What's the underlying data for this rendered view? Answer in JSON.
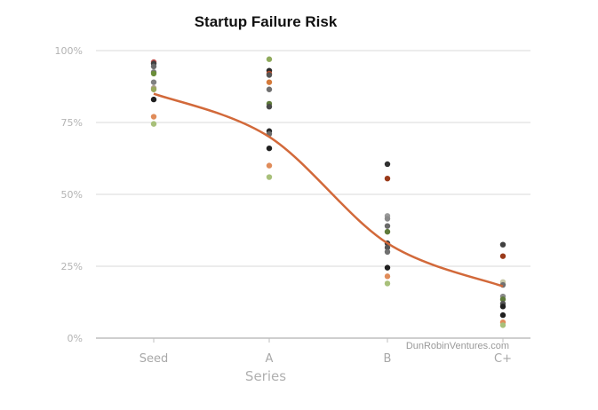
{
  "chart_data": {
    "type": "scatter",
    "title": "Startup Failure Risk",
    "xlabel": "Series",
    "ylabel": "",
    "categories": [
      "Seed",
      "A",
      "B",
      "C+"
    ],
    "ylim": [
      0,
      1
    ],
    "y_ticks": [
      "0%",
      "25%",
      "50%",
      "75%",
      "100%"
    ],
    "grid": "horizontal",
    "points": [
      {
        "x": "Seed",
        "y": 0.96,
        "color": "#c0504d"
      },
      {
        "x": "Seed",
        "y": 0.955,
        "color": "#404040"
      },
      {
        "x": "Seed",
        "y": 0.945,
        "color": "#6a6a6a"
      },
      {
        "x": "Seed",
        "y": 0.925,
        "color": "#7a7a7a"
      },
      {
        "x": "Seed",
        "y": 0.92,
        "color": "#6b8e3a"
      },
      {
        "x": "Seed",
        "y": 0.89,
        "color": "#808080"
      },
      {
        "x": "Seed",
        "y": 0.87,
        "color": "#b0a090"
      },
      {
        "x": "Seed",
        "y": 0.865,
        "color": "#9aa95c"
      },
      {
        "x": "Seed",
        "y": 0.83,
        "color": "#202020"
      },
      {
        "x": "Seed",
        "y": 0.77,
        "color": "#e08c5a"
      },
      {
        "x": "Seed",
        "y": 0.745,
        "color": "#a8c07a"
      },
      {
        "x": "A",
        "y": 0.97,
        "color": "#8faa5c"
      },
      {
        "x": "A",
        "y": 0.93,
        "color": "#2a2a2a"
      },
      {
        "x": "A",
        "y": 0.92,
        "color": "#b44a2a"
      },
      {
        "x": "A",
        "y": 0.915,
        "color": "#555555"
      },
      {
        "x": "A",
        "y": 0.89,
        "color": "#d47a3a"
      },
      {
        "x": "A",
        "y": 0.865,
        "color": "#707070"
      },
      {
        "x": "A",
        "y": 0.815,
        "color": "#5f7a3a"
      },
      {
        "x": "A",
        "y": 0.805,
        "color": "#4a4a4a"
      },
      {
        "x": "A",
        "y": 0.72,
        "color": "#2a2a2a"
      },
      {
        "x": "A",
        "y": 0.71,
        "color": "#6a6a6a"
      },
      {
        "x": "A",
        "y": 0.66,
        "color": "#202020"
      },
      {
        "x": "A",
        "y": 0.6,
        "color": "#e08c5a"
      },
      {
        "x": "A",
        "y": 0.56,
        "color": "#a8c07a"
      },
      {
        "x": "B",
        "y": 0.605,
        "color": "#303030"
      },
      {
        "x": "B",
        "y": 0.555,
        "color": "#9a3a1a"
      },
      {
        "x": "B",
        "y": 0.425,
        "color": "#9a9a9a"
      },
      {
        "x": "B",
        "y": 0.415,
        "color": "#8a8a8a"
      },
      {
        "x": "B",
        "y": 0.39,
        "color": "#6a6a6a"
      },
      {
        "x": "B",
        "y": 0.37,
        "color": "#5f7a3a"
      },
      {
        "x": "B",
        "y": 0.33,
        "color": "#404040"
      },
      {
        "x": "B",
        "y": 0.315,
        "color": "#555555"
      },
      {
        "x": "B",
        "y": 0.3,
        "color": "#707070"
      },
      {
        "x": "B",
        "y": 0.245,
        "color": "#202020"
      },
      {
        "x": "B",
        "y": 0.215,
        "color": "#e08c5a"
      },
      {
        "x": "B",
        "y": 0.19,
        "color": "#a8c07a"
      },
      {
        "x": "C+",
        "y": 0.325,
        "color": "#404040"
      },
      {
        "x": "C+",
        "y": 0.285,
        "color": "#9a3a1a"
      },
      {
        "x": "C+",
        "y": 0.195,
        "color": "#c8c8a8"
      },
      {
        "x": "C+",
        "y": 0.185,
        "color": "#707070"
      },
      {
        "x": "C+",
        "y": 0.145,
        "color": "#8a8a8a"
      },
      {
        "x": "C+",
        "y": 0.135,
        "color": "#5f7a3a"
      },
      {
        "x": "C+",
        "y": 0.12,
        "color": "#555555"
      },
      {
        "x": "C+",
        "y": 0.11,
        "color": "#202020"
      },
      {
        "x": "C+",
        "y": 0.08,
        "color": "#202020"
      },
      {
        "x": "C+",
        "y": 0.055,
        "color": "#e08c5a"
      },
      {
        "x": "C+",
        "y": 0.045,
        "color": "#a8c07a"
      }
    ],
    "trend": {
      "color": "#d2693a",
      "values": [
        0.85,
        0.7,
        0.33,
        0.18
      ]
    },
    "watermark": "DunRobinVentures.com"
  }
}
